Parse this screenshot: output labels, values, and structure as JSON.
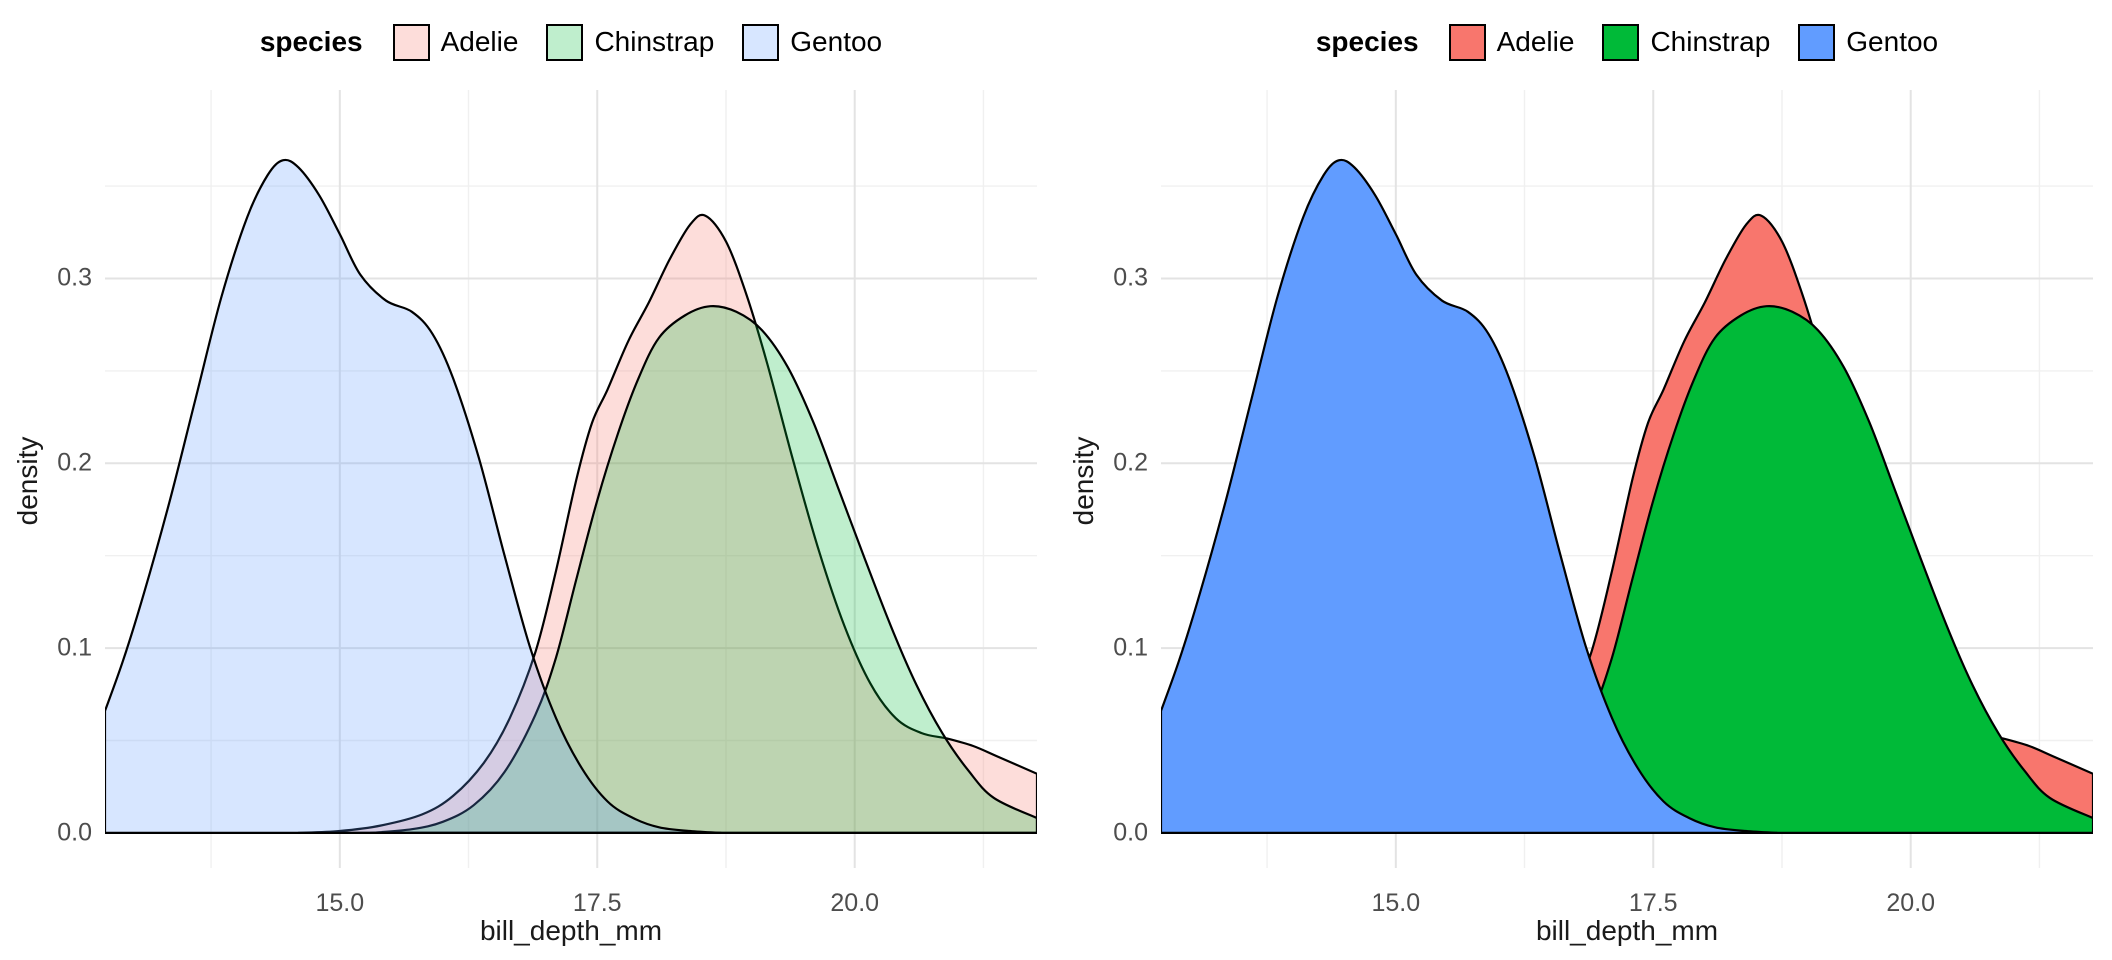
{
  "legend": {
    "title": "species",
    "entries": [
      {
        "label": "Adelie",
        "color": "#F8766D"
      },
      {
        "label": "Chinstrap",
        "color": "#00BA38"
      },
      {
        "label": "Gentoo",
        "color": "#619CFF"
      }
    ]
  },
  "panels": [
    {
      "id": "left",
      "fill_alpha": 0.25
    },
    {
      "id": "right",
      "fill_alpha": 1.0
    }
  ],
  "chart_data": {
    "type": "area",
    "subtype": "density",
    "xlabel": "bill_depth_mm",
    "ylabel": "density",
    "xlim": [
      12.72,
      21.77
    ],
    "ylim": [
      -0.019,
      0.402
    ],
    "x_ticks": [
      {
        "value": 15.0,
        "label": "15.0"
      },
      {
        "value": 17.5,
        "label": "17.5"
      },
      {
        "value": 20.0,
        "label": "20.0"
      }
    ],
    "x_minor": [
      13.75,
      16.25,
      18.75,
      21.25
    ],
    "y_ticks": [
      {
        "value": 0.0,
        "label": "0.0"
      },
      {
        "value": 0.1,
        "label": "0.1"
      },
      {
        "value": 0.2,
        "label": "0.2"
      },
      {
        "value": 0.3,
        "label": "0.3"
      }
    ],
    "y_minor": [
      0.05,
      0.15,
      0.25,
      0.35
    ],
    "grid": {
      "major_color": "#E3E3E3",
      "minor_color": "#F0F0F0"
    },
    "outline_color": "#000000",
    "draw_order": [
      "Adelie",
      "Chinstrap",
      "Gentoo"
    ],
    "series": [
      {
        "name": "Adelie",
        "color": "#F8766D",
        "points": [
          [
            14.6,
            0.0
          ],
          [
            15.0,
            0.001
          ],
          [
            15.4,
            0.004
          ],
          [
            15.8,
            0.01
          ],
          [
            16.1,
            0.02
          ],
          [
            16.4,
            0.038
          ],
          [
            16.65,
            0.062
          ],
          [
            16.9,
            0.098
          ],
          [
            17.1,
            0.142
          ],
          [
            17.3,
            0.192
          ],
          [
            17.45,
            0.222
          ],
          [
            17.6,
            0.24
          ],
          [
            17.8,
            0.266
          ],
          [
            18.0,
            0.287
          ],
          [
            18.2,
            0.31
          ],
          [
            18.4,
            0.329
          ],
          [
            18.55,
            0.334
          ],
          [
            18.75,
            0.32
          ],
          [
            18.95,
            0.291
          ],
          [
            19.15,
            0.254
          ],
          [
            19.4,
            0.202
          ],
          [
            19.65,
            0.153
          ],
          [
            19.9,
            0.112
          ],
          [
            20.15,
            0.081
          ],
          [
            20.4,
            0.062
          ],
          [
            20.65,
            0.054
          ],
          [
            20.9,
            0.051
          ],
          [
            21.15,
            0.047
          ],
          [
            21.4,
            0.041
          ],
          [
            21.77,
            0.032
          ]
        ]
      },
      {
        "name": "Chinstrap",
        "color": "#00BA38",
        "points": [
          [
            15.3,
            0.0
          ],
          [
            15.7,
            0.002
          ],
          [
            16.0,
            0.006
          ],
          [
            16.3,
            0.015
          ],
          [
            16.6,
            0.033
          ],
          [
            16.9,
            0.064
          ],
          [
            17.1,
            0.095
          ],
          [
            17.3,
            0.138
          ],
          [
            17.5,
            0.18
          ],
          [
            17.7,
            0.216
          ],
          [
            17.9,
            0.246
          ],
          [
            18.1,
            0.268
          ],
          [
            18.35,
            0.28
          ],
          [
            18.6,
            0.285
          ],
          [
            18.85,
            0.282
          ],
          [
            19.1,
            0.272
          ],
          [
            19.35,
            0.252
          ],
          [
            19.6,
            0.222
          ],
          [
            19.85,
            0.185
          ],
          [
            20.1,
            0.148
          ],
          [
            20.35,
            0.112
          ],
          [
            20.6,
            0.08
          ],
          [
            20.85,
            0.054
          ],
          [
            21.1,
            0.034
          ],
          [
            21.35,
            0.019
          ],
          [
            21.77,
            0.008
          ]
        ]
      },
      {
        "name": "Gentoo",
        "color": "#619CFF",
        "points": [
          [
            12.72,
            0.066
          ],
          [
            12.9,
            0.094
          ],
          [
            13.1,
            0.13
          ],
          [
            13.35,
            0.18
          ],
          [
            13.6,
            0.235
          ],
          [
            13.85,
            0.29
          ],
          [
            14.1,
            0.333
          ],
          [
            14.3,
            0.356
          ],
          [
            14.45,
            0.364
          ],
          [
            14.6,
            0.36
          ],
          [
            14.8,
            0.345
          ],
          [
            15.0,
            0.324
          ],
          [
            15.2,
            0.302
          ],
          [
            15.45,
            0.288
          ],
          [
            15.7,
            0.282
          ],
          [
            15.9,
            0.27
          ],
          [
            16.1,
            0.246
          ],
          [
            16.35,
            0.203
          ],
          [
            16.6,
            0.15
          ],
          [
            16.85,
            0.1
          ],
          [
            17.1,
            0.062
          ],
          [
            17.35,
            0.035
          ],
          [
            17.6,
            0.017
          ],
          [
            17.85,
            0.008
          ],
          [
            18.1,
            0.003
          ],
          [
            18.4,
            0.001
          ],
          [
            18.7,
            0.0
          ]
        ]
      }
    ]
  }
}
